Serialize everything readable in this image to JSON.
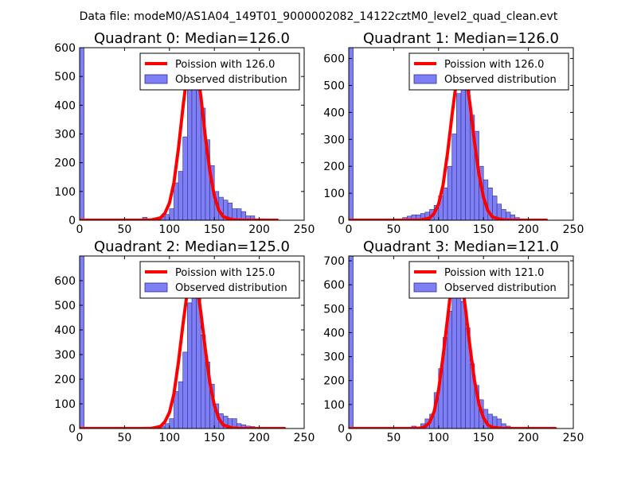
{
  "suptitle": "Data file: modeM0/AS1A04_149T01_9000002082_14122cztM0_level2_quad_clean.evt",
  "colors": {
    "bar_fill": "#7f7ff5",
    "bar_edge": "#2e2e8c",
    "poisson_line": "#ff0000",
    "axis": "#000000",
    "legend_edge": "#000000"
  },
  "chart_data": [
    {
      "type": "histogram",
      "title": "Quadrant 0: Median=126.0",
      "xlim": [
        0,
        250
      ],
      "ylim": [
        0,
        600
      ],
      "xticks": [
        0,
        50,
        100,
        150,
        200,
        250
      ],
      "yticks": [
        0,
        100,
        200,
        300,
        400,
        500,
        600
      ],
      "legend": {
        "placement": "top-right",
        "entries": [
          "Poission with 126.0",
          "Observed distribution"
        ]
      },
      "mean": 126.0,
      "bin_width": 5,
      "bins": [
        {
          "x": 0,
          "count": 600
        },
        {
          "x": 70,
          "count": 10
        },
        {
          "x": 75,
          "count": 5
        },
        {
          "x": 80,
          "count": 5
        },
        {
          "x": 85,
          "count": 8
        },
        {
          "x": 90,
          "count": 12
        },
        {
          "x": 95,
          "count": 20
        },
        {
          "x": 100,
          "count": 40
        },
        {
          "x": 105,
          "count": 130
        },
        {
          "x": 110,
          "count": 170
        },
        {
          "x": 115,
          "count": 290
        },
        {
          "x": 120,
          "count": 480
        },
        {
          "x": 125,
          "count": 570
        },
        {
          "x": 130,
          "count": 520
        },
        {
          "x": 135,
          "count": 390
        },
        {
          "x": 140,
          "count": 280
        },
        {
          "x": 145,
          "count": 190
        },
        {
          "x": 150,
          "count": 100
        },
        {
          "x": 155,
          "count": 80
        },
        {
          "x": 160,
          "count": 70
        },
        {
          "x": 165,
          "count": 60
        },
        {
          "x": 170,
          "count": 40
        },
        {
          "x": 175,
          "count": 40
        },
        {
          "x": 180,
          "count": 30
        },
        {
          "x": 185,
          "count": 15
        },
        {
          "x": 190,
          "count": 15
        },
        {
          "x": 195,
          "count": 5
        },
        {
          "x": 200,
          "count": 5
        }
      ],
      "poisson": {
        "x": [
          0,
          70,
          80,
          90,
          95,
          100,
          105,
          110,
          115,
          120,
          125,
          130,
          135,
          140,
          145,
          150,
          155,
          160,
          170,
          180,
          190,
          200,
          220
        ],
        "y": [
          0,
          0,
          1,
          8,
          25,
          60,
          130,
          250,
          390,
          520,
          575,
          545,
          430,
          290,
          170,
          85,
          35,
          12,
          2,
          0,
          0,
          0,
          0
        ]
      }
    },
    {
      "type": "histogram",
      "title": "Quadrant 1: Median=126.0",
      "xlim": [
        0,
        250
      ],
      "ylim": [
        0,
        640
      ],
      "xticks": [
        0,
        50,
        100,
        150,
        200,
        250
      ],
      "yticks": [
        0,
        100,
        200,
        300,
        400,
        500,
        600
      ],
      "legend": {
        "placement": "top-right",
        "entries": [
          "Poission with 126.0",
          "Observed distribution"
        ]
      },
      "mean": 126.0,
      "bin_width": 5,
      "bins": [
        {
          "x": 0,
          "count": 640
        },
        {
          "x": 60,
          "count": 10
        },
        {
          "x": 65,
          "count": 15
        },
        {
          "x": 70,
          "count": 20
        },
        {
          "x": 75,
          "count": 20
        },
        {
          "x": 80,
          "count": 25
        },
        {
          "x": 85,
          "count": 30
        },
        {
          "x": 90,
          "count": 40
        },
        {
          "x": 95,
          "count": 55
        },
        {
          "x": 100,
          "count": 90
        },
        {
          "x": 105,
          "count": 120
        },
        {
          "x": 110,
          "count": 200
        },
        {
          "x": 115,
          "count": 320
        },
        {
          "x": 120,
          "count": 470
        },
        {
          "x": 125,
          "count": 590
        },
        {
          "x": 130,
          "count": 560
        },
        {
          "x": 135,
          "count": 390
        },
        {
          "x": 140,
          "count": 330
        },
        {
          "x": 145,
          "count": 200
        },
        {
          "x": 150,
          "count": 150
        },
        {
          "x": 155,
          "count": 120
        },
        {
          "x": 160,
          "count": 90
        },
        {
          "x": 165,
          "count": 60
        },
        {
          "x": 170,
          "count": 40
        },
        {
          "x": 175,
          "count": 30
        },
        {
          "x": 180,
          "count": 20
        },
        {
          "x": 185,
          "count": 10
        }
      ],
      "poisson": {
        "x": [
          0,
          70,
          80,
          90,
          95,
          100,
          105,
          110,
          115,
          120,
          125,
          130,
          135,
          140,
          145,
          150,
          155,
          160,
          170,
          180,
          190,
          200,
          220
        ],
        "y": [
          0,
          0,
          1,
          8,
          25,
          60,
          130,
          250,
          390,
          520,
          580,
          550,
          430,
          290,
          170,
          85,
          35,
          12,
          2,
          0,
          0,
          0,
          0
        ]
      }
    },
    {
      "type": "histogram",
      "title": "Quadrant 2: Median=125.0",
      "xlim": [
        0,
        250
      ],
      "ylim": [
        0,
        700
      ],
      "xticks": [
        0,
        50,
        100,
        150,
        200,
        250
      ],
      "yticks": [
        0,
        100,
        200,
        300,
        400,
        500,
        600
      ],
      "legend": {
        "placement": "top-right",
        "entries": [
          "Poission with 125.0",
          "Observed distribution"
        ]
      },
      "mean": 125.0,
      "bin_width": 5,
      "bins": [
        {
          "x": 0,
          "count": 700
        },
        {
          "x": 75,
          "count": 5
        },
        {
          "x": 80,
          "count": 5
        },
        {
          "x": 85,
          "count": 5
        },
        {
          "x": 90,
          "count": 10
        },
        {
          "x": 95,
          "count": 20
        },
        {
          "x": 100,
          "count": 40
        },
        {
          "x": 105,
          "count": 150
        },
        {
          "x": 110,
          "count": 190
        },
        {
          "x": 115,
          "count": 310
        },
        {
          "x": 120,
          "count": 510
        },
        {
          "x": 125,
          "count": 630
        },
        {
          "x": 130,
          "count": 590
        },
        {
          "x": 135,
          "count": 380
        },
        {
          "x": 140,
          "count": 270
        },
        {
          "x": 145,
          "count": 180
        },
        {
          "x": 150,
          "count": 100
        },
        {
          "x": 155,
          "count": 60
        },
        {
          "x": 160,
          "count": 50
        },
        {
          "x": 165,
          "count": 40
        },
        {
          "x": 170,
          "count": 40
        },
        {
          "x": 175,
          "count": 20
        },
        {
          "x": 180,
          "count": 15
        },
        {
          "x": 185,
          "count": 10
        },
        {
          "x": 190,
          "count": 8
        },
        {
          "x": 195,
          "count": 5
        },
        {
          "x": 200,
          "count": 5
        }
      ],
      "poisson": {
        "x": [
          0,
          70,
          80,
          90,
          95,
          100,
          105,
          110,
          115,
          120,
          125,
          130,
          135,
          140,
          145,
          150,
          155,
          160,
          170,
          180,
          190,
          200,
          228
        ],
        "y": [
          0,
          0,
          1,
          8,
          28,
          65,
          140,
          270,
          420,
          560,
          630,
          600,
          470,
          320,
          185,
          95,
          40,
          14,
          2,
          0,
          0,
          0,
          0
        ]
      }
    },
    {
      "type": "histogram",
      "title": "Quadrant 3: Median=121.0",
      "xlim": [
        0,
        250
      ],
      "ylim": [
        0,
        720
      ],
      "xticks": [
        0,
        50,
        100,
        150,
        200,
        250
      ],
      "yticks": [
        0,
        100,
        200,
        300,
        400,
        500,
        600,
        700
      ],
      "legend": {
        "placement": "top-right",
        "entries": [
          "Poission with 121.0",
          "Observed distribution"
        ]
      },
      "mean": 121.0,
      "bin_width": 5,
      "bins": [
        {
          "x": 0,
          "count": 720
        },
        {
          "x": 70,
          "count": 10
        },
        {
          "x": 75,
          "count": 5
        },
        {
          "x": 80,
          "count": 20
        },
        {
          "x": 85,
          "count": 40
        },
        {
          "x": 90,
          "count": 60
        },
        {
          "x": 95,
          "count": 150
        },
        {
          "x": 100,
          "count": 250
        },
        {
          "x": 105,
          "count": 380
        },
        {
          "x": 110,
          "count": 490
        },
        {
          "x": 115,
          "count": 680
        },
        {
          "x": 120,
          "count": 620
        },
        {
          "x": 125,
          "count": 530
        },
        {
          "x": 130,
          "count": 420
        },
        {
          "x": 135,
          "count": 270
        },
        {
          "x": 140,
          "count": 180
        },
        {
          "x": 145,
          "count": 120
        },
        {
          "x": 150,
          "count": 80
        },
        {
          "x": 155,
          "count": 60
        },
        {
          "x": 160,
          "count": 50
        },
        {
          "x": 165,
          "count": 40
        },
        {
          "x": 170,
          "count": 20
        },
        {
          "x": 175,
          "count": 10
        },
        {
          "x": 180,
          "count": 5
        }
      ],
      "poisson": {
        "x": [
          0,
          70,
          80,
          85,
          90,
          95,
          100,
          105,
          110,
          115,
          120,
          125,
          130,
          135,
          140,
          145,
          150,
          155,
          160,
          170,
          180,
          200,
          230
        ],
        "y": [
          0,
          0,
          2,
          8,
          25,
          70,
          160,
          300,
          460,
          620,
          690,
          640,
          500,
          340,
          200,
          100,
          45,
          15,
          5,
          1,
          0,
          0,
          0
        ]
      }
    }
  ]
}
